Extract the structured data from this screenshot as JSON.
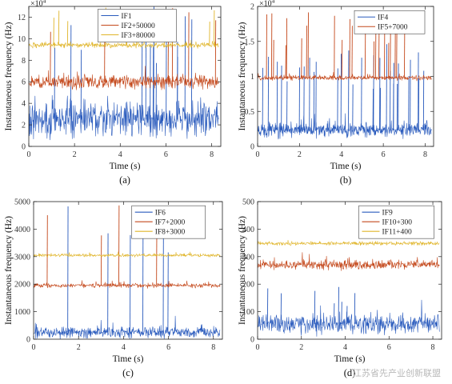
{
  "colors": {
    "series1": "#2a5bbd",
    "series2": "#c4481b",
    "series3": "#e0b52a"
  },
  "watermark": "江苏省先产业创新联盟",
  "chart_data": [
    {
      "type": "line",
      "panel_label": "(a)",
      "xlabel": "Time (s)",
      "ylabel": "Instantaneous frequency (Hz)",
      "xlim": [
        0,
        8.4
      ],
      "ylim": [
        0,
        130000
      ],
      "xticks": [
        0,
        2,
        4,
        6,
        8
      ],
      "yticks": [
        0,
        20000,
        40000,
        60000,
        80000,
        100000,
        120000
      ],
      "ytick_labels": [
        "0",
        "2",
        "4",
        "6",
        "8",
        "10",
        "12"
      ],
      "y_multiplier": {
        "base": "×10",
        "exp": "4"
      },
      "grid": false,
      "legend_position": "top-center",
      "series": [
        {
          "name": "IF1",
          "color": "#2a5bbd",
          "baseline": 25000,
          "noise": 14000,
          "spikes": 14,
          "spike_top": 130000,
          "x_end": 8.3
        },
        {
          "name": "IF2+50000",
          "color": "#c4481b",
          "baseline": 60000,
          "noise": 5500,
          "spikes": 6,
          "spike_top": 130000,
          "x_end": 8.3
        },
        {
          "name": "IF3+80000",
          "color": "#e0b52a",
          "baseline": 94000,
          "noise": 2200,
          "spikes": 9,
          "spike_top": 130000,
          "x_end": 8.3
        }
      ]
    },
    {
      "type": "line",
      "panel_label": "(b)",
      "xlabel": "Time (s)",
      "ylabel": "Instantaneous frequency (Hz)",
      "xlim": [
        0,
        8.4
      ],
      "ylim": [
        0,
        20000
      ],
      "xticks": [
        0,
        2,
        4,
        6,
        8
      ],
      "yticks": [
        0,
        5000,
        10000,
        15000,
        20000
      ],
      "ytick_labels": [
        "0",
        "0.5",
        "1",
        "1.5",
        "2"
      ],
      "y_multiplier": {
        "base": "×10",
        "exp": "4"
      },
      "grid": false,
      "legend_position": "top-right",
      "series": [
        {
          "name": "IF4",
          "color": "#2a5bbd",
          "baseline": 2300,
          "noise": 900,
          "spikes": 30,
          "spike_top": 15000,
          "x_end": 8.3
        },
        {
          "name": "IF5+7000",
          "color": "#c4481b",
          "baseline": 9800,
          "noise": 300,
          "spikes": 22,
          "spike_top": 20000,
          "x_end": 8.3
        }
      ]
    },
    {
      "type": "line",
      "panel_label": "(c)",
      "xlabel": "Time (s)",
      "ylabel": "Instantaneous frequency (Hz)",
      "xlim": [
        0,
        8.4
      ],
      "ylim": [
        0,
        5000
      ],
      "xticks": [
        0,
        2,
        4,
        6,
        8
      ],
      "yticks": [
        0,
        1000,
        2000,
        3000,
        4000,
        5000
      ],
      "ytick_labels": [
        "0",
        "1000",
        "2000",
        "3000",
        "4000",
        "5000"
      ],
      "grid": false,
      "legend_position": "top-right",
      "series": [
        {
          "name": "IF6",
          "color": "#2a5bbd",
          "baseline": 250,
          "noise": 180,
          "spikes": 6,
          "spike_top": 5000,
          "x_end": 8.3
        },
        {
          "name": "IF7+2000",
          "color": "#c4481b",
          "baseline": 1950,
          "noise": 70,
          "spikes": 4,
          "spike_top": 5000,
          "x_end": 8.3
        },
        {
          "name": "IF8+3000",
          "color": "#e0b52a",
          "baseline": 3050,
          "noise": 50,
          "spikes": 0,
          "spike_top": 5000,
          "x_end": 8.3
        }
      ]
    },
    {
      "type": "line",
      "panel_label": "(d)",
      "xlabel": "Time (s)",
      "ylabel": "Instantaneous frequency (Hz)",
      "xlim": [
        0,
        8.4
      ],
      "ylim": [
        0,
        500
      ],
      "xticks": [
        0,
        2,
        4,
        6,
        8
      ],
      "yticks": [
        0,
        100,
        200,
        300,
        400,
        500
      ],
      "ytick_labels": [
        "0",
        "100",
        "200",
        "300",
        "400",
        "500"
      ],
      "grid": false,
      "legend_position": "top-right",
      "series": [
        {
          "name": "IF9",
          "color": "#2a5bbd",
          "baseline": 55,
          "noise": 30,
          "spikes": 8,
          "spike_top": 200,
          "x_end": 8.3
        },
        {
          "name": "IF10+300",
          "color": "#c4481b",
          "baseline": 270,
          "noise": 14,
          "spikes": 0,
          "spike_top": 300,
          "x_end": 8.3
        },
        {
          "name": "IF11+400",
          "color": "#e0b52a",
          "baseline": 348,
          "noise": 6,
          "spikes": 0,
          "spike_top": 380,
          "x_end": 8.3
        }
      ]
    }
  ]
}
